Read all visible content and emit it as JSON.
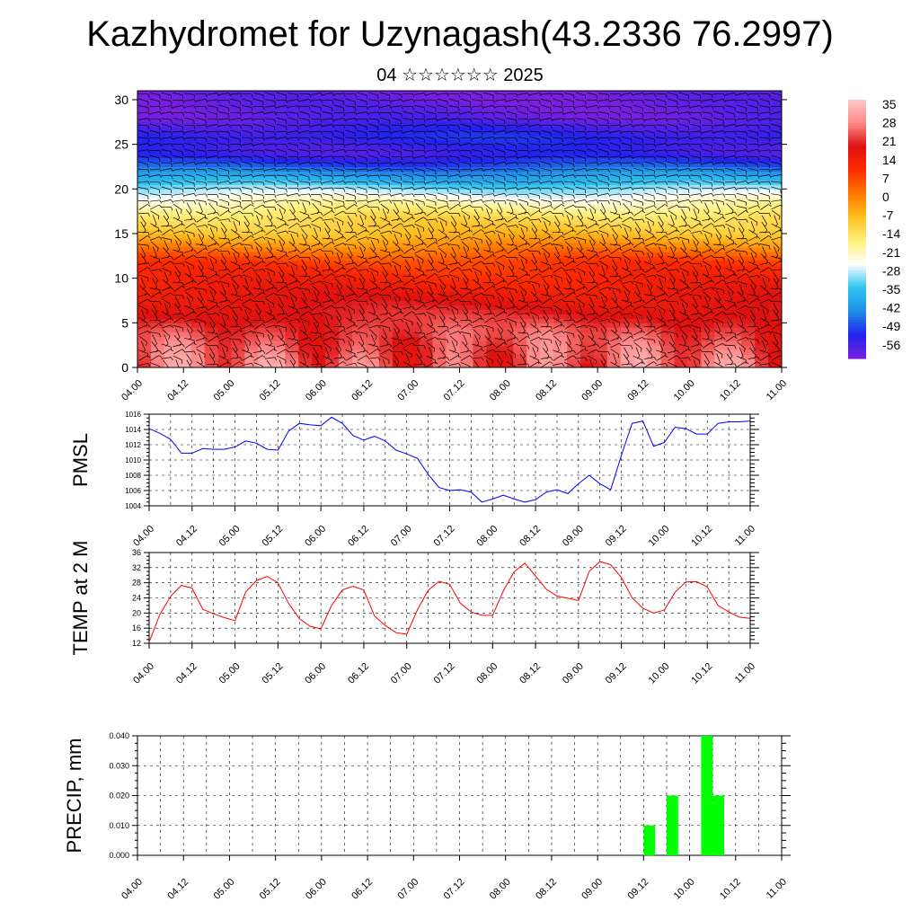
{
  "title": "Kazhydromet for Uzynagash(43.2336 76.2997)",
  "subtitle": "04 ☆☆☆☆☆☆ 2025",
  "time_ticks": [
    "04.00",
    "04.12",
    "05.00",
    "05.12",
    "06.00",
    "06.12",
    "07.00",
    "07.12",
    "08.00",
    "08.12",
    "09.00",
    "09.12",
    "10.00",
    "10.12",
    "11.00"
  ],
  "chart_data": [
    {
      "type": "heatmap",
      "description_free": true,
      "x_categories": [
        "04.00",
        "04.12",
        "05.00",
        "05.12",
        "06.00",
        "06.12",
        "07.00",
        "07.12",
        "08.00",
        "08.12",
        "09.00",
        "09.12",
        "10.00",
        "10.12",
        "11.00"
      ],
      "y_ticks": [
        0,
        5,
        10,
        15,
        20,
        25,
        30
      ],
      "ylim": [
        0,
        31
      ],
      "colorbar_labels": [
        "35",
        "28",
        "21",
        "14",
        "7",
        "0",
        "-7",
        "-14",
        "-21",
        "-28",
        "-35",
        "-42",
        "-49",
        "-56"
      ],
      "colorbar_range": [
        -63,
        38
      ],
      "color_stops": [
        "#7a1fe0",
        "#2222ee",
        "#1f8ee8",
        "#2ec4f0",
        "#ffffff",
        "#fff07a",
        "#ffc020",
        "#ff7a00",
        "#ff2a00",
        "#e01010",
        "#ff8888",
        "#ffc8c8"
      ],
      "temperature_profile": [
        [
          0,
          26
        ],
        [
          4,
          24
        ],
        [
          8,
          17
        ],
        [
          12,
          8
        ],
        [
          15,
          -8
        ],
        [
          17,
          -14
        ],
        [
          19,
          -24
        ],
        [
          21,
          -38
        ],
        [
          23,
          -52
        ],
        [
          24,
          -57
        ],
        [
          26,
          -54
        ],
        [
          28,
          -60
        ],
        [
          31,
          -62
        ]
      ],
      "wind_barbs": true
    },
    {
      "type": "line",
      "ylabel": "PMSL",
      "ylim": [
        1004,
        1016
      ],
      "y_ticks": [
        1004,
        1006,
        1008,
        1010,
        1012,
        1014,
        1016
      ],
      "x": [
        0,
        3,
        6,
        9,
        12,
        15,
        18,
        21,
        24,
        27,
        30,
        33,
        36,
        39,
        42,
        45,
        48,
        51,
        54,
        57,
        60,
        63,
        66,
        69,
        72,
        75,
        78,
        81,
        84,
        87,
        90,
        93,
        96,
        99,
        102,
        105,
        108,
        111,
        114,
        117,
        120,
        123,
        126,
        129,
        132,
        135,
        138,
        141,
        144,
        147,
        150,
        153,
        156,
        159,
        162,
        165,
        168
      ],
      "series": [
        {
          "color": "#0000ff",
          "values": [
            1014.1,
            1013.5,
            1012.7,
            1010.9,
            1010.9,
            1011.5,
            1011.4,
            1011.4,
            1011.7,
            1012.5,
            1012.2,
            1011.4,
            1011.3,
            1013.8,
            1014.8,
            1014.6,
            1014.5,
            1015.6,
            1014.8,
            1013.2,
            1012.6,
            1013.1,
            1012.5,
            1011.3,
            1010.8,
            1010.2,
            1008.1,
            1006.4,
            1006.0,
            1006.1,
            1005.8,
            1004.5,
            1004.9,
            1005.4,
            1004.9,
            1004.5,
            1004.8,
            1005.8,
            1006.1,
            1005.6,
            1006.9,
            1008.0,
            1006.9,
            1006.1,
            1010.6,
            1014.8,
            1015.1,
            1011.8,
            1012.3,
            1014.3,
            1014.1,
            1013.4,
            1013.4,
            1014.8,
            1015.0,
            1015.0,
            1015.1
          ]
        }
      ]
    },
    {
      "type": "line",
      "ylabel": "TEMP at 2 M",
      "ylim": [
        12,
        36
      ],
      "y_ticks": [
        12,
        16,
        20,
        24,
        28,
        32,
        36
      ],
      "x": [
        0,
        3,
        6,
        9,
        12,
        15,
        18,
        21,
        24,
        27,
        30,
        33,
        36,
        39,
        42,
        45,
        48,
        51,
        54,
        57,
        60,
        63,
        66,
        69,
        72,
        75,
        78,
        81,
        84,
        87,
        90,
        93,
        96,
        99,
        102,
        105,
        108,
        111,
        114,
        117,
        120,
        123,
        126,
        129,
        132,
        135,
        138,
        141,
        144,
        147,
        150,
        153,
        156,
        159,
        162,
        165,
        168
      ],
      "series": [
        {
          "color": "#ff0000",
          "values": [
            12.3,
            19.6,
            24.4,
            27.3,
            26.6,
            21.0,
            19.8,
            18.8,
            18.0,
            25.6,
            28.6,
            29.7,
            28.0,
            22.5,
            18.5,
            16.5,
            15.8,
            22.0,
            26.1,
            27.1,
            26.1,
            19.2,
            16.7,
            14.8,
            14.4,
            20.9,
            26.0,
            28.4,
            27.6,
            22.6,
            20.3,
            19.4,
            19.4,
            25.8,
            30.9,
            33.2,
            29.8,
            26.3,
            24.5,
            23.9,
            23.3,
            31.0,
            33.6,
            32.8,
            29.4,
            24.0,
            21.3,
            20.0,
            20.8,
            25.5,
            28.2,
            28.3,
            26.9,
            22.0,
            20.3,
            18.9,
            18.6
          ]
        }
      ]
    },
    {
      "type": "bar",
      "ylabel": "PRECIP, mm",
      "ylim": [
        0,
        0.04
      ],
      "y_ticks": [
        "0.000",
        "0.010",
        "0.020",
        "0.030",
        "0.040"
      ],
      "bars": [
        {
          "x": 135,
          "value": 0.01
        },
        {
          "x": 141,
          "value": 0.02
        },
        {
          "x": 150,
          "value": 0.04
        },
        {
          "x": 153,
          "value": 0.02
        }
      ],
      "color": "#00ff00"
    }
  ]
}
